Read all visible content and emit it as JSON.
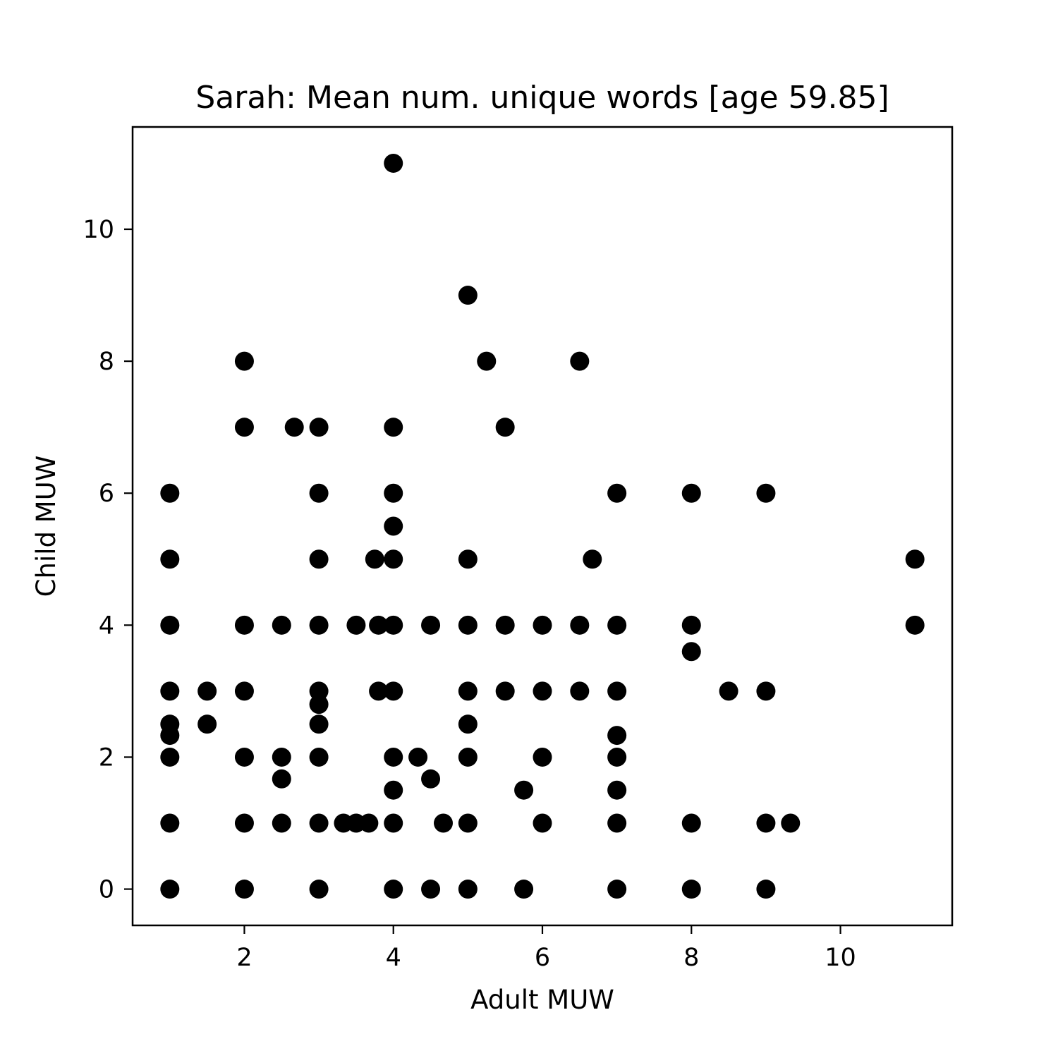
{
  "chart_data": {
    "type": "scatter",
    "title": "Sarah: Mean num. unique words [age 59.85]",
    "xlabel": "Adult MUW",
    "ylabel": "Child MUW",
    "xlim": [
      0.5,
      11.5
    ],
    "ylim": [
      -0.55,
      11.55
    ],
    "xticks": [
      2,
      4,
      6,
      8,
      10
    ],
    "yticks": [
      0,
      2,
      4,
      6,
      8,
      10
    ],
    "grid": false,
    "marker_color": "#000000",
    "points": [
      [
        4,
        11
      ],
      [
        5,
        9
      ],
      [
        2,
        8
      ],
      [
        5.25,
        8
      ],
      [
        6.5,
        8
      ],
      [
        2,
        7
      ],
      [
        2.67,
        7
      ],
      [
        3,
        7
      ],
      [
        4,
        7
      ],
      [
        5.5,
        7
      ],
      [
        1,
        6
      ],
      [
        3,
        6
      ],
      [
        4,
        6
      ],
      [
        7,
        6
      ],
      [
        8,
        6
      ],
      [
        9,
        6
      ],
      [
        4,
        5.5
      ],
      [
        1,
        5
      ],
      [
        3,
        5
      ],
      [
        3.75,
        5
      ],
      [
        4,
        5
      ],
      [
        5,
        5
      ],
      [
        6.67,
        5
      ],
      [
        11,
        5
      ],
      [
        1,
        4
      ],
      [
        2,
        4
      ],
      [
        2.5,
        4
      ],
      [
        3,
        4
      ],
      [
        3.5,
        4
      ],
      [
        3.8,
        4
      ],
      [
        4,
        4
      ],
      [
        4.5,
        4
      ],
      [
        5,
        4
      ],
      [
        5.5,
        4
      ],
      [
        6,
        4
      ],
      [
        6.5,
        4
      ],
      [
        7,
        4
      ],
      [
        8,
        4
      ],
      [
        11,
        4
      ],
      [
        8,
        3.6
      ],
      [
        1,
        3
      ],
      [
        1.5,
        3
      ],
      [
        2,
        3
      ],
      [
        3,
        3
      ],
      [
        3.8,
        3
      ],
      [
        4,
        3
      ],
      [
        5,
        3
      ],
      [
        5.5,
        3
      ],
      [
        6,
        3
      ],
      [
        6.5,
        3
      ],
      [
        7,
        3
      ],
      [
        8.5,
        3
      ],
      [
        9,
        3
      ],
      [
        3,
        2.8
      ],
      [
        1,
        2.5
      ],
      [
        1.5,
        2.5
      ],
      [
        3,
        2.5
      ],
      [
        5,
        2.5
      ],
      [
        1,
        2.33
      ],
      [
        7,
        2.33
      ],
      [
        1,
        2
      ],
      [
        2,
        2
      ],
      [
        2.5,
        2
      ],
      [
        3,
        2
      ],
      [
        4,
        2
      ],
      [
        4.33,
        2
      ],
      [
        5,
        2
      ],
      [
        6,
        2
      ],
      [
        7,
        2
      ],
      [
        2.5,
        1.67
      ],
      [
        4.5,
        1.67
      ],
      [
        4,
        1.5
      ],
      [
        5.75,
        1.5
      ],
      [
        7,
        1.5
      ],
      [
        1,
        1
      ],
      [
        2,
        1
      ],
      [
        2.5,
        1
      ],
      [
        3,
        1
      ],
      [
        3.33,
        1
      ],
      [
        3.5,
        1
      ],
      [
        3.67,
        1
      ],
      [
        4,
        1
      ],
      [
        4.67,
        1
      ],
      [
        5,
        1
      ],
      [
        6,
        1
      ],
      [
        7,
        1
      ],
      [
        8,
        1
      ],
      [
        9,
        1
      ],
      [
        9.33,
        1
      ],
      [
        1,
        0
      ],
      [
        2,
        0
      ],
      [
        3,
        0
      ],
      [
        4,
        0
      ],
      [
        4.5,
        0
      ],
      [
        5,
        0
      ],
      [
        5.75,
        0
      ],
      [
        7,
        0
      ],
      [
        8,
        0
      ],
      [
        9,
        0
      ]
    ]
  }
}
